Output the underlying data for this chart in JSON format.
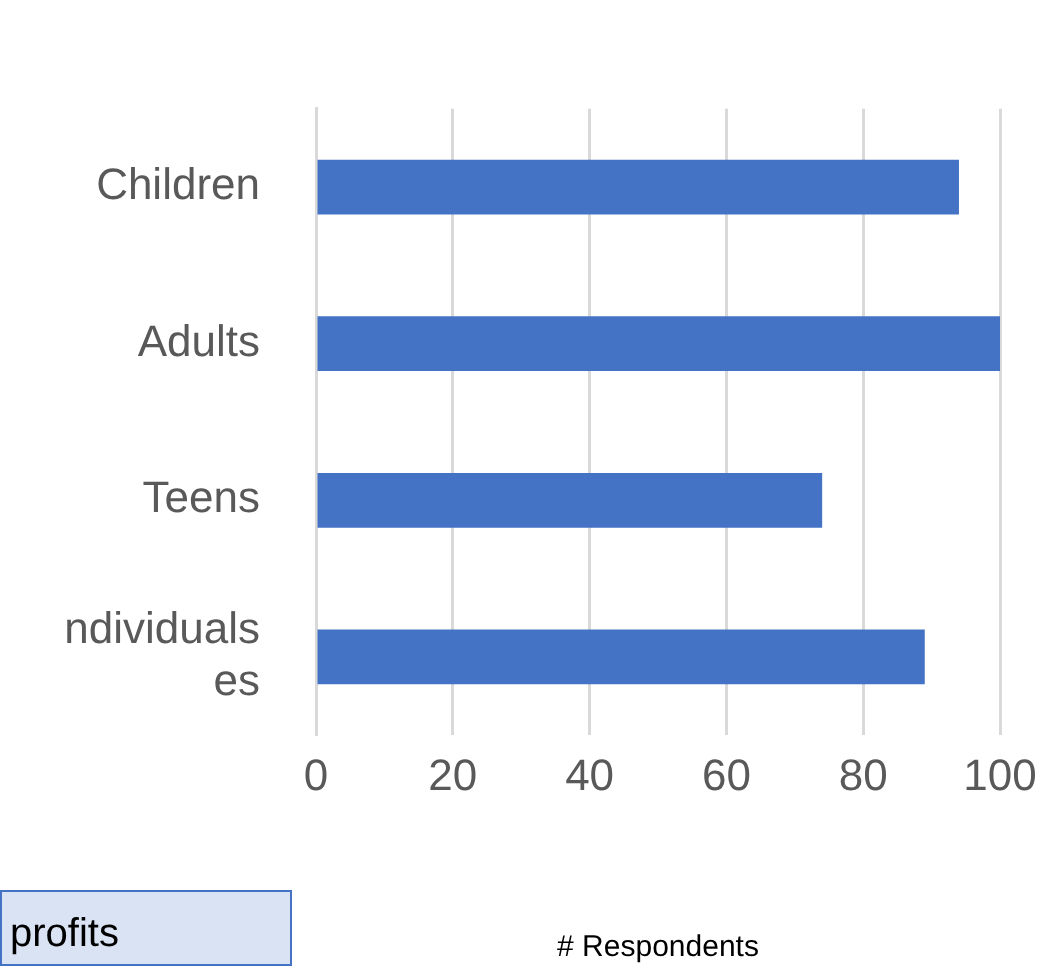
{
  "chart_data": {
    "type": "bar",
    "orientation": "horizontal",
    "categories": [
      "Children",
      "Adults",
      "Teens",
      "ndividuals\nes"
    ],
    "values": [
      94,
      100,
      74,
      89
    ],
    "color": "#4472c4",
    "xlim": [
      0,
      100
    ],
    "xticks": [
      0,
      20,
      40,
      60,
      80,
      100
    ],
    "xlabel": "# Respondents",
    "grid": "x",
    "legend": false,
    "annotations": [
      "profits"
    ]
  }
}
